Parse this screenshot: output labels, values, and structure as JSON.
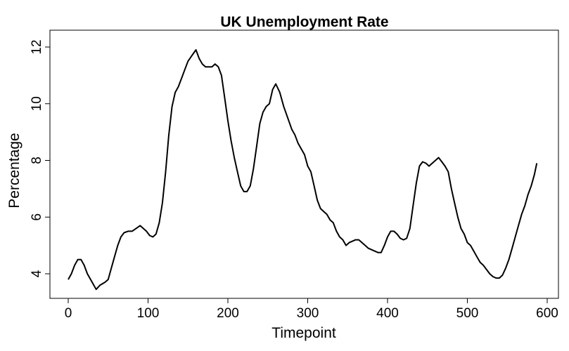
{
  "chart_data": {
    "type": "line",
    "title": "UK Unemployment Rate",
    "xlabel": "Timepoint",
    "ylabel": "Percentage",
    "xlim": [
      0,
      587
    ],
    "ylim": [
      3.1,
      12.2
    ],
    "x_ticks": [
      0,
      100,
      200,
      300,
      400,
      500,
      600
    ],
    "y_ticks": [
      4,
      6,
      8,
      10,
      12
    ],
    "grid": false,
    "legend": "none",
    "line_color": "#000000",
    "series": [
      {
        "x": [
          0,
          4,
          8,
          12,
          16,
          20,
          24,
          28,
          32,
          35,
          40,
          46,
          50,
          54,
          58,
          62,
          66,
          70,
          75,
          80,
          85,
          90,
          94,
          98,
          102,
          106,
          110,
          114,
          118,
          122,
          126,
          130,
          134,
          138,
          142,
          146,
          150,
          155,
          160,
          164,
          168,
          172,
          176,
          180,
          184,
          188,
          192,
          196,
          200,
          204,
          208,
          212,
          216,
          220,
          224,
          228,
          232,
          236,
          240,
          244,
          248,
          252,
          256,
          260,
          265,
          270,
          275,
          280,
          284,
          288,
          292,
          296,
          300,
          304,
          308,
          312,
          316,
          320,
          324,
          328,
          332,
          336,
          340,
          344,
          348,
          352,
          356,
          360,
          364,
          368,
          372,
          376,
          380,
          384,
          388,
          392,
          396,
          400,
          404,
          408,
          412,
          416,
          420,
          424,
          428,
          432,
          436,
          440,
          444,
          448,
          452,
          456,
          460,
          464,
          468,
          472,
          476,
          480,
          484,
          488,
          492,
          496,
          500,
          504,
          508,
          512,
          516,
          520,
          524,
          528,
          532,
          536,
          540,
          544,
          548,
          552,
          556,
          560,
          564,
          568,
          572,
          576,
          580,
          584,
          587
        ],
        "values": [
          3.8,
          4.0,
          4.3,
          4.5,
          4.5,
          4.3,
          4.0,
          3.8,
          3.6,
          3.45,
          3.6,
          3.7,
          3.8,
          4.2,
          4.6,
          5.0,
          5.3,
          5.45,
          5.5,
          5.5,
          5.6,
          5.7,
          5.6,
          5.5,
          5.35,
          5.3,
          5.4,
          5.8,
          6.5,
          7.6,
          8.9,
          9.9,
          10.4,
          10.6,
          10.9,
          11.2,
          11.5,
          11.7,
          11.9,
          11.6,
          11.4,
          11.3,
          11.3,
          11.3,
          11.4,
          11.3,
          11.0,
          10.2,
          9.4,
          8.7,
          8.1,
          7.6,
          7.1,
          6.9,
          6.9,
          7.1,
          7.7,
          8.5,
          9.3,
          9.7,
          9.9,
          10.0,
          10.5,
          10.7,
          10.4,
          9.9,
          9.5,
          9.1,
          8.9,
          8.6,
          8.4,
          8.2,
          7.8,
          7.6,
          7.1,
          6.6,
          6.3,
          6.2,
          6.1,
          5.9,
          5.8,
          5.5,
          5.3,
          5.2,
          5.0,
          5.1,
          5.15,
          5.2,
          5.2,
          5.1,
          5.0,
          4.9,
          4.85,
          4.8,
          4.75,
          4.75,
          5.0,
          5.3,
          5.5,
          5.5,
          5.4,
          5.25,
          5.2,
          5.25,
          5.6,
          6.4,
          7.2,
          7.8,
          7.95,
          7.9,
          7.8,
          7.9,
          8.0,
          8.1,
          7.95,
          7.8,
          7.6,
          7.0,
          6.5,
          6.0,
          5.6,
          5.4,
          5.1,
          5.0,
          4.8,
          4.6,
          4.4,
          4.3,
          4.15,
          4.0,
          3.9,
          3.85,
          3.85,
          3.95,
          4.2,
          4.5,
          4.9,
          5.3,
          5.7,
          6.1,
          6.4,
          6.8,
          7.1,
          7.5,
          7.9
        ],
        "note_removed": ""
      }
    ]
  }
}
